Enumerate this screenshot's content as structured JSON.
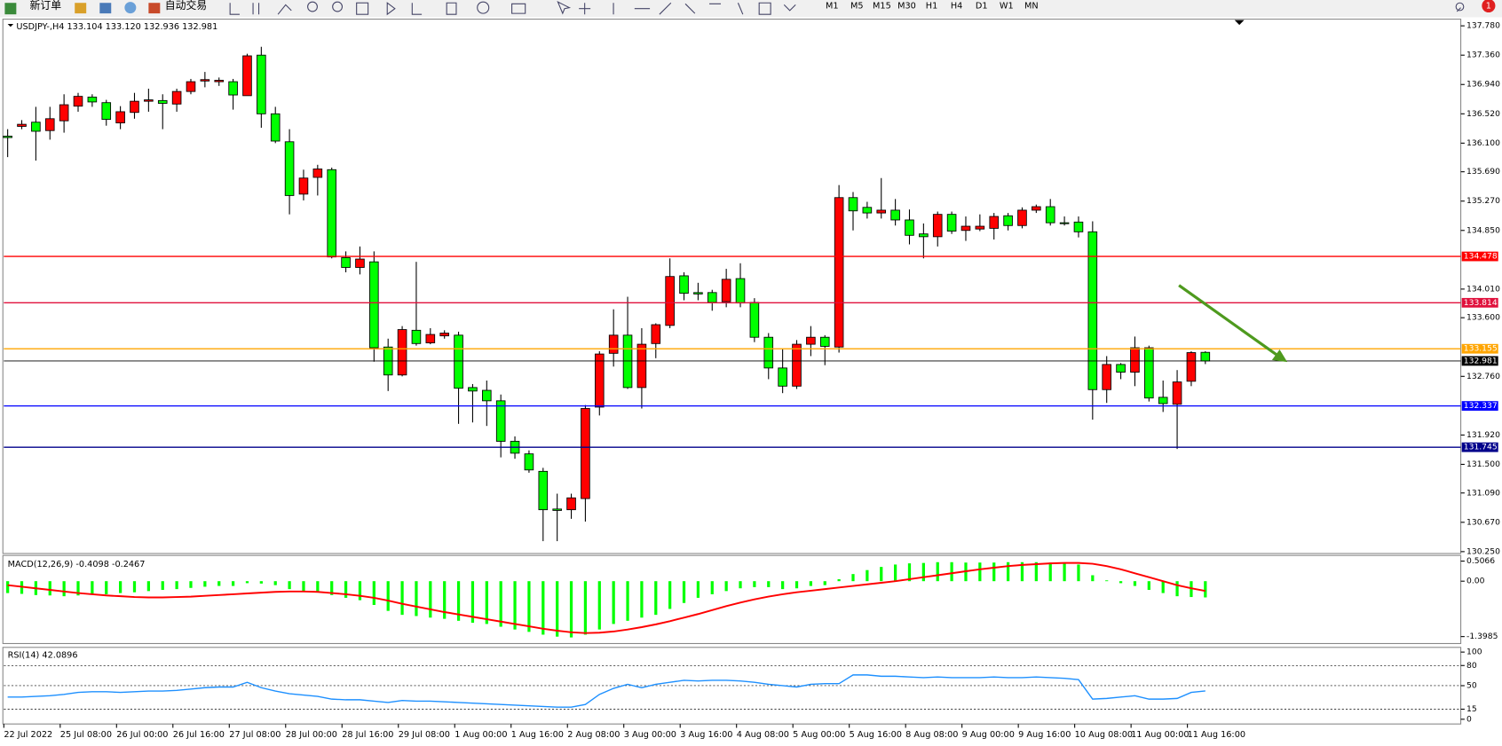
{
  "toolbar": {
    "new_order": "新订单",
    "auto_trading": "自动交易",
    "timeframes": [
      "M1",
      "M5",
      "M15",
      "M30",
      "H1",
      "H4",
      "D1",
      "W1",
      "MN"
    ],
    "badge": 1
  },
  "chart_data": [
    {
      "type": "candlestick",
      "title": "USDJPY-,H4  133.104 133.120 132.936 132.981",
      "up_color": "#ff0000",
      "down_color": "#00ff00",
      "categories": [
        "22 Jul 2022",
        null,
        null,
        null,
        "25 Jul 08:00",
        null,
        null,
        null,
        "26 Jul 00:00",
        null,
        null,
        null,
        "26 Jul 16:00",
        null,
        null,
        null,
        "27 Jul 08:00",
        null,
        null,
        null,
        "28 Jul 00:00",
        null,
        null,
        null,
        "28 Jul 16:00",
        null,
        null,
        null,
        "29 Jul 08:00",
        null,
        null,
        null,
        "1 Aug 00:00",
        null,
        null,
        null,
        "1 Aug 16:00",
        null,
        null,
        null,
        "2 Aug 08:00",
        null,
        null,
        null,
        "3 Aug 00:00",
        null,
        null,
        null,
        "3 Aug 16:00",
        null,
        null,
        null,
        "4 Aug 08:00",
        null,
        null,
        null,
        "5 Aug 00:00",
        null,
        null,
        null,
        "5 Aug 16:00",
        null,
        null,
        null,
        "8 Aug 08:00",
        null,
        null,
        null,
        "9 Aug 00:00",
        null,
        null,
        null,
        "9 Aug 16:00",
        null,
        null,
        null,
        "10 Aug 08:00",
        null,
        null,
        null,
        "11 Aug 00:00",
        null,
        null,
        null,
        "11 Aug 16:00",
        null
      ],
      "open": [
        136.2,
        136.34,
        136.4,
        136.28,
        136.42,
        136.63,
        136.76,
        136.68,
        136.39,
        136.54,
        136.7,
        136.71,
        136.66,
        136.84,
        136.99,
        136.98,
        136.98,
        136.78,
        137.36,
        136.52,
        136.12,
        135.37,
        135.61,
        135.72,
        134.46,
        134.32,
        134.4,
        133.18,
        132.78,
        133.42,
        133.24,
        133.34,
        133.35,
        132.6,
        132.56,
        132.41,
        131.83,
        131.65,
        131.4,
        130.86,
        130.85,
        131.01,
        132.32,
        133.09,
        133.35,
        132.6,
        133.23,
        133.49,
        134.2,
        133.96,
        133.96,
        133.83,
        134.16,
        133.82,
        133.32,
        132.88,
        132.62,
        133.22,
        133.32,
        133.18,
        135.32,
        135.18,
        135.1,
        135.14,
        135.0,
        134.8,
        134.76,
        135.08,
        134.85,
        134.87,
        134.88,
        135.06,
        134.92,
        135.14,
        135.19,
        134.96,
        134.97,
        134.83,
        132.57,
        132.93,
        132.82,
        133.17,
        132.46,
        132.36,
        132.69,
        133.104
      ],
      "high": [
        136.3,
        136.43,
        136.62,
        136.62,
        136.8,
        136.82,
        136.8,
        136.72,
        136.63,
        136.82,
        136.88,
        136.8,
        136.88,
        137.02,
        137.12,
        137.04,
        137.02,
        137.38,
        137.48,
        136.62,
        136.3,
        135.72,
        135.79,
        135.75,
        134.55,
        134.62,
        134.55,
        133.3,
        133.48,
        134.4,
        133.45,
        133.42,
        133.4,
        132.65,
        132.7,
        132.5,
        131.9,
        131.7,
        131.45,
        131.08,
        131.08,
        132.35,
        133.12,
        133.72,
        133.9,
        133.45,
        133.52,
        134.45,
        134.25,
        134.1,
        134.0,
        134.3,
        134.38,
        133.88,
        133.38,
        133.15,
        133.28,
        133.48,
        133.35,
        135.5,
        135.4,
        135.26,
        135.6,
        135.3,
        135.15,
        134.95,
        135.12,
        135.12,
        135.05,
        135.08,
        135.1,
        135.1,
        135.18,
        135.22,
        135.3,
        135.05,
        135.05,
        134.98,
        133.05,
        132.95,
        133.33,
        133.2,
        132.7,
        132.85,
        133.12,
        133.12
      ],
      "low": [
        135.9,
        136.3,
        135.85,
        136.15,
        136.25,
        136.55,
        136.62,
        136.35,
        136.3,
        136.45,
        136.55,
        136.3,
        136.55,
        136.8,
        136.9,
        136.92,
        136.58,
        136.78,
        136.32,
        136.1,
        135.08,
        135.28,
        135.35,
        134.45,
        134.25,
        134.22,
        132.97,
        132.55,
        132.76,
        133.2,
        133.22,
        133.3,
        132.08,
        132.1,
        132.05,
        131.6,
        131.58,
        131.38,
        130.4,
        130.4,
        130.72,
        130.68,
        132.2,
        132.9,
        132.58,
        132.3,
        133.02,
        133.45,
        133.85,
        133.85,
        133.7,
        133.75,
        133.75,
        133.25,
        132.72,
        132.52,
        132.58,
        133.05,
        132.92,
        133.1,
        134.85,
        135.02,
        135.02,
        134.92,
        134.65,
        134.45,
        134.62,
        134.8,
        134.7,
        134.84,
        134.72,
        134.85,
        134.88,
        135.1,
        134.92,
        134.92,
        134.75,
        132.14,
        132.38,
        132.72,
        132.62,
        132.4,
        132.25,
        131.72,
        132.62,
        132.936
      ],
      "close": [
        136.18,
        136.37,
        136.27,
        136.45,
        136.65,
        136.77,
        136.69,
        136.44,
        136.55,
        136.7,
        136.72,
        136.67,
        136.84,
        136.98,
        137.01,
        137.0,
        136.79,
        137.35,
        136.52,
        136.13,
        135.35,
        135.6,
        135.73,
        134.47,
        134.32,
        134.44,
        133.17,
        132.78,
        133.43,
        133.23,
        133.36,
        133.38,
        132.59,
        132.55,
        132.41,
        131.83,
        131.66,
        131.42,
        130.85,
        130.84,
        131.02,
        132.3,
        133.08,
        133.35,
        132.6,
        133.22,
        133.5,
        134.19,
        133.95,
        133.94,
        133.82,
        134.15,
        133.81,
        133.32,
        132.88,
        132.62,
        133.22,
        133.32,
        133.19,
        135.32,
        135.13,
        135.1,
        135.14,
        135.0,
        134.78,
        134.76,
        135.08,
        134.84,
        134.91,
        134.91,
        135.05,
        134.92,
        135.14,
        135.19,
        134.96,
        134.95,
        134.83,
        132.57,
        132.93,
        132.82,
        133.17,
        132.45,
        132.37,
        132.68,
        133.1,
        132.981
      ],
      "ylim": [
        130.223,
        137.862
      ],
      "yticks": [
        {
          "value": 137.78,
          "label": "137.780"
        },
        {
          "value": 137.36,
          "label": "137.360"
        },
        {
          "value": 136.94,
          "label": "136.940"
        },
        {
          "value": 136.52,
          "label": "136.520"
        },
        {
          "value": 136.1,
          "label": "136.100"
        },
        {
          "value": 135.69,
          "label": "135.690"
        },
        {
          "value": 135.27,
          "label": "135.270"
        },
        {
          "value": 134.85,
          "label": "134.850"
        },
        {
          "value": 134.01,
          "label": "134.010"
        },
        {
          "value": 133.6,
          "label": "133.600"
        },
        {
          "value": 132.76,
          "label": "132.760"
        },
        {
          "value": 131.92,
          "label": "131.920"
        },
        {
          "value": 131.5,
          "label": "131.500"
        },
        {
          "value": 131.09,
          "label": "131.090"
        },
        {
          "value": 130.67,
          "label": "130.670"
        },
        {
          "value": 130.25,
          "label": "130.250"
        }
      ],
      "levels": [
        {
          "value": 134.478,
          "color": "#ff0000"
        },
        {
          "value": 133.814,
          "color": "#e0103c"
        },
        {
          "value": 133.155,
          "color": "#ffa500"
        },
        {
          "value": 132.337,
          "color": "#0000ff"
        },
        {
          "value": 131.745,
          "color": "#00008b"
        }
      ]
    },
    {
      "type": "macd",
      "label": "MACD(12,26,9) -0.4098 -0.2467",
      "color": "#00ff00",
      "signal_color": "#ff0000",
      "values": [
        -0.3,
        -0.32,
        -0.35,
        -0.36,
        -0.38,
        -0.36,
        -0.33,
        -0.33,
        -0.3,
        -0.28,
        -0.25,
        -0.22,
        -0.2,
        -0.17,
        -0.14,
        -0.12,
        -0.12,
        -0.05,
        -0.06,
        -0.1,
        -0.2,
        -0.25,
        -0.28,
        -0.35,
        -0.42,
        -0.48,
        -0.6,
        -0.75,
        -0.85,
        -0.88,
        -0.92,
        -0.95,
        -1.0,
        -1.05,
        -1.08,
        -1.15,
        -1.22,
        -1.28,
        -1.35,
        -1.4,
        -1.42,
        -1.35,
        -1.22,
        -1.08,
        -1.0,
        -0.92,
        -0.85,
        -0.7,
        -0.55,
        -0.42,
        -0.33,
        -0.25,
        -0.18,
        -0.15,
        -0.15,
        -0.2,
        -0.18,
        -0.12,
        -0.1,
        0.05,
        0.18,
        0.28,
        0.36,
        0.42,
        0.45,
        0.46,
        0.48,
        0.48,
        0.47,
        0.47,
        0.47,
        0.48,
        0.48,
        0.48,
        0.47,
        0.46,
        0.42,
        0.15,
        0.02,
        -0.05,
        -0.12,
        -0.22,
        -0.3,
        -0.38,
        -0.4,
        -0.4098
      ],
      "signal": [
        -0.1,
        -0.14,
        -0.18,
        -0.22,
        -0.26,
        -0.3,
        -0.33,
        -0.36,
        -0.38,
        -0.4,
        -0.41,
        -0.41,
        -0.4,
        -0.39,
        -0.37,
        -0.35,
        -0.33,
        -0.31,
        -0.29,
        -0.27,
        -0.26,
        -0.26,
        -0.27,
        -0.3,
        -0.33,
        -0.37,
        -0.42,
        -0.49,
        -0.57,
        -0.64,
        -0.71,
        -0.78,
        -0.84,
        -0.9,
        -0.96,
        -1.02,
        -1.08,
        -1.14,
        -1.2,
        -1.25,
        -1.29,
        -1.31,
        -1.3,
        -1.27,
        -1.22,
        -1.16,
        -1.09,
        -1.01,
        -0.92,
        -0.83,
        -0.73,
        -0.63,
        -0.54,
        -0.46,
        -0.39,
        -0.33,
        -0.28,
        -0.24,
        -0.2,
        -0.16,
        -0.12,
        -0.08,
        -0.04,
        0.0,
        0.05,
        0.1,
        0.15,
        0.2,
        0.25,
        0.3,
        0.34,
        0.38,
        0.41,
        0.43,
        0.45,
        0.46,
        0.46,
        0.44,
        0.38,
        0.3,
        0.2,
        0.1,
        0.0,
        -0.1,
        -0.18,
        -0.2467
      ],
      "ylim": [
        -1.55,
        0.65
      ],
      "yticks": [
        0.5066,
        {
          "value": 0,
          "label": "0.00"
        },
        -1.3985
      ]
    },
    {
      "type": "line",
      "label": "RSI(14) 42.0896",
      "color": "#1e90ff",
      "values": [
        33,
        33,
        34,
        35,
        37,
        40,
        41,
        41,
        40,
        41,
        42,
        42,
        43,
        45,
        47,
        48,
        48,
        55,
        47,
        42,
        38,
        36,
        34,
        30,
        29,
        29,
        27,
        25,
        28,
        27,
        27,
        26,
        25,
        24,
        23,
        22,
        21,
        20,
        19,
        18,
        18,
        22,
        37,
        46,
        52,
        47,
        52,
        55,
        58,
        57,
        58,
        58,
        57,
        55,
        52,
        50,
        48,
        52,
        53,
        53,
        66,
        66,
        64,
        64,
        63,
        62,
        63,
        62,
        62,
        62,
        63,
        62,
        62,
        63,
        62,
        61,
        59,
        30,
        31,
        33,
        35,
        30,
        30,
        31,
        40,
        42.0896
      ],
      "ylim": [
        -5.6,
        105.6
      ],
      "yticks": [
        100,
        80,
        50,
        15,
        0
      ]
    }
  ]
}
